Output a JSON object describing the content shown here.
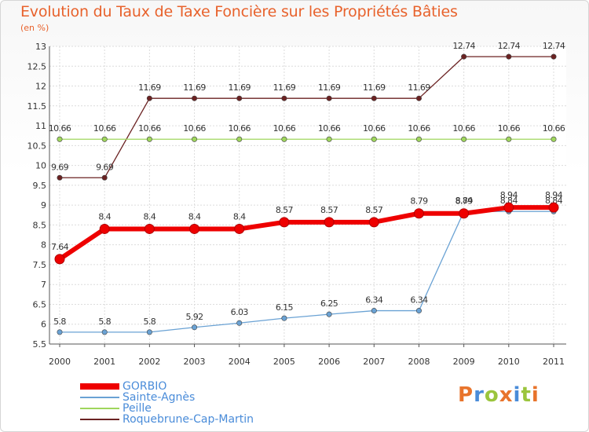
{
  "title": "Evolution du Taux de Taxe Foncière sur les Propriétés Bâties",
  "unit": "(en %)",
  "logo": {
    "text": "Proxiti",
    "colors": [
      "#e8742c",
      "#4a8cd9",
      "#9bc53d",
      "#e8742c",
      "#4a8cd9",
      "#9bc53d",
      "#e8742c"
    ]
  },
  "chart_data": {
    "type": "line",
    "title": "Evolution du Taux de Taxe Foncière sur les Propriétés Bâties",
    "ylabel": "(en %)",
    "xlabel": "",
    "x": [
      "2000",
      "2001",
      "2002",
      "2003",
      "2004",
      "2005",
      "2006",
      "2007",
      "2008",
      "2009",
      "2010",
      "2011"
    ],
    "ylim": [
      5.5,
      13
    ],
    "yticks": [
      "5.5",
      "6",
      "6.5",
      "7",
      "7.5",
      "8",
      "8.5",
      "9",
      "9.5",
      "10",
      "10.5",
      "11",
      "11.5",
      "12",
      "12.5",
      "13"
    ],
    "series": [
      {
        "name": "Roquebrune-Cap-Martin",
        "color": "#6b2222",
        "width": 1.3,
        "values": [
          9.69,
          9.69,
          11.69,
          11.69,
          11.69,
          11.69,
          11.69,
          11.69,
          11.69,
          12.74,
          12.74,
          12.74
        ],
        "labels": [
          "9.69",
          "9.69",
          "11.69",
          "11.69",
          "11.69",
          "11.69",
          "11.69",
          "11.69",
          "11.69",
          "12.74",
          "12.74",
          "12.74"
        ]
      },
      {
        "name": "Peille",
        "color": "#9fd65c",
        "width": 1.3,
        "values": [
          10.66,
          10.66,
          10.66,
          10.66,
          10.66,
          10.66,
          10.66,
          10.66,
          10.66,
          10.66,
          10.66,
          10.66
        ],
        "labels": [
          "10.66",
          "10.66",
          "10.66",
          "10.66",
          "10.66",
          "10.66",
          "10.66",
          "10.66",
          "10.66",
          "10.66",
          "10.66",
          "10.66"
        ]
      },
      {
        "name": "Sainte-Agnès",
        "color": "#6aa2d4",
        "width": 1.3,
        "values": [
          5.8,
          5.8,
          5.8,
          5.92,
          6.03,
          6.15,
          6.25,
          6.34,
          6.34,
          8.84,
          8.84,
          8.84
        ],
        "labels": [
          "5.8",
          "5.8",
          "5.8",
          "5.92",
          "6.03",
          "6.15",
          "6.25",
          "6.34",
          "6.34",
          "8.84",
          "8.84",
          "8.84"
        ]
      },
      {
        "name": "GORBIO",
        "color": "#ee0000",
        "width": 6,
        "values": [
          7.64,
          8.4,
          8.4,
          8.4,
          8.4,
          8.57,
          8.57,
          8.57,
          8.79,
          8.79,
          8.94,
          8.94
        ],
        "labels": [
          "7.64",
          "8.4",
          "8.4",
          "8.4",
          "8.4",
          "8.57",
          "8.57",
          "8.57",
          "8.79",
          "8.79",
          "8.94",
          "8.94"
        ]
      }
    ],
    "legend_order": [
      "GORBIO",
      "Sainte-Agnès",
      "Peille",
      "Roquebrune-Cap-Martin"
    ],
    "legend_position": "bottom-left",
    "grid": true
  }
}
